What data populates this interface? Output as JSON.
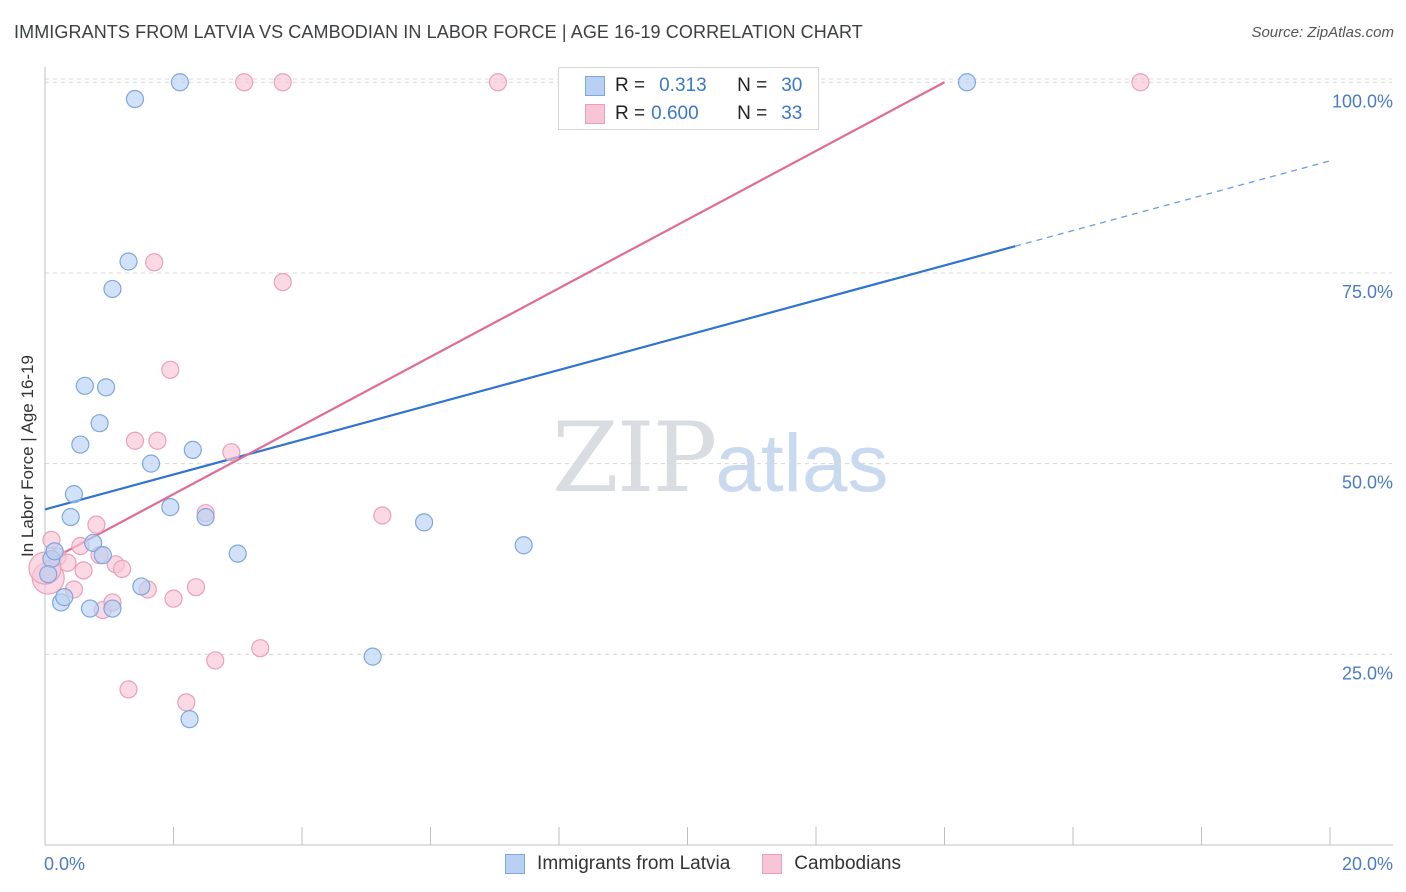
{
  "title": "IMMIGRANTS FROM LATVIA VS CAMBODIAN IN LABOR FORCE | AGE 16-19 CORRELATION CHART",
  "source": "Source: ZipAtlas.com",
  "watermark": {
    "zip": "ZIP",
    "atlas": "atlas"
  },
  "legend": {
    "r_label": "R =",
    "n_label": "N =",
    "series": [
      {
        "r": "0.313",
        "n": "30"
      },
      {
        "r": "0.600",
        "n": "33"
      }
    ]
  },
  "bottom_legend": [
    "Immigrants from Latvia",
    "Cambodians"
  ],
  "colors": {
    "blue_fill": "#b8d1f3",
    "blue_stroke": "#7ea7dd",
    "blue_line": "#2f74d0",
    "pink_fill": "#f7c5d5",
    "pink_stroke": "#eaa0ba",
    "pink_line": "#e06b96",
    "grid": "#d8d8d8",
    "tick_text": "#4a7cc4"
  },
  "chart_data": {
    "type": "scatter",
    "title": "IMMIGRANTS FROM LATVIA VS CAMBODIAN IN LABOR FORCE | AGE 16-19 CORRELATION CHART",
    "xlabel": "",
    "ylabel": "In Labor Force | Age 16-19",
    "xlim": [
      0,
      20
    ],
    "ylim": [
      0,
      102
    ],
    "x_tick_labels": [
      "0.0%",
      "20.0%"
    ],
    "y_ticks": [
      25,
      50,
      75,
      100
    ],
    "y_tick_labels": [
      "25.0%",
      "50.0%",
      "75.0%",
      "100.0%"
    ],
    "grid": true,
    "series": [
      {
        "name": "Immigrants from Latvia",
        "r": 0.313,
        "n": 30,
        "points": [
          [
            0.1,
            37.5
          ],
          [
            0.15,
            38.5
          ],
          [
            0.25,
            31.8
          ],
          [
            0.3,
            32.5
          ],
          [
            0.4,
            43
          ],
          [
            0.45,
            46
          ],
          [
            0.55,
            52.5
          ],
          [
            0.62,
            60.2
          ],
          [
            0.7,
            31
          ],
          [
            0.75,
            39.6
          ],
          [
            0.85,
            55.3
          ],
          [
            0.9,
            38
          ],
          [
            0.95,
            60
          ],
          [
            1.05,
            31
          ],
          [
            1.05,
            72.9
          ],
          [
            1.3,
            76.5
          ],
          [
            1.4,
            97.8
          ],
          [
            1.5,
            33.9
          ],
          [
            1.65,
            50
          ],
          [
            1.95,
            44.3
          ],
          [
            2.1,
            100
          ],
          [
            2.25,
            16.5
          ],
          [
            2.3,
            51.8
          ],
          [
            2.5,
            43
          ],
          [
            3.0,
            38.2
          ],
          [
            5.1,
            24.7
          ],
          [
            5.9,
            42.3
          ],
          [
            7.45,
            39.3
          ],
          [
            14.35,
            100
          ],
          [
            0.05,
            35.5
          ]
        ],
        "trend": {
          "x_start": 0,
          "y_start": 44,
          "x_end": 15.1,
          "y_end": 78.5,
          "dashed_to_x": 20,
          "dashed_to_y": 89.7
        }
      },
      {
        "name": "Cambodians",
        "r": 0.6,
        "n": 33,
        "points": [
          [
            0.05,
            35
          ],
          [
            0.1,
            40
          ],
          [
            0.2,
            37.8
          ],
          [
            0.35,
            37
          ],
          [
            0.45,
            33.5
          ],
          [
            0.55,
            39.2
          ],
          [
            0.6,
            36
          ],
          [
            0.8,
            42
          ],
          [
            0.85,
            38
          ],
          [
            0.9,
            30.8
          ],
          [
            1.05,
            31.8
          ],
          [
            1.1,
            36.8
          ],
          [
            1.2,
            36.2
          ],
          [
            1.3,
            20.4
          ],
          [
            1.4,
            53
          ],
          [
            1.6,
            33.5
          ],
          [
            1.7,
            76.4
          ],
          [
            1.75,
            53
          ],
          [
            1.95,
            62.3
          ],
          [
            2.0,
            32.3
          ],
          [
            2.2,
            18.7
          ],
          [
            2.35,
            33.8
          ],
          [
            2.5,
            43.5
          ],
          [
            2.65,
            24.2
          ],
          [
            2.9,
            51.5
          ],
          [
            3.1,
            100
          ],
          [
            3.35,
            25.8
          ],
          [
            3.7,
            73.8
          ],
          [
            3.7,
            100
          ],
          [
            5.25,
            43.2
          ],
          [
            7.05,
            100
          ],
          [
            17.05,
            100
          ],
          [
            0.0,
            36.3
          ]
        ],
        "trend": {
          "x_start": 0,
          "y_start": 37,
          "x_end": 14,
          "y_end": 100
        }
      }
    ]
  }
}
